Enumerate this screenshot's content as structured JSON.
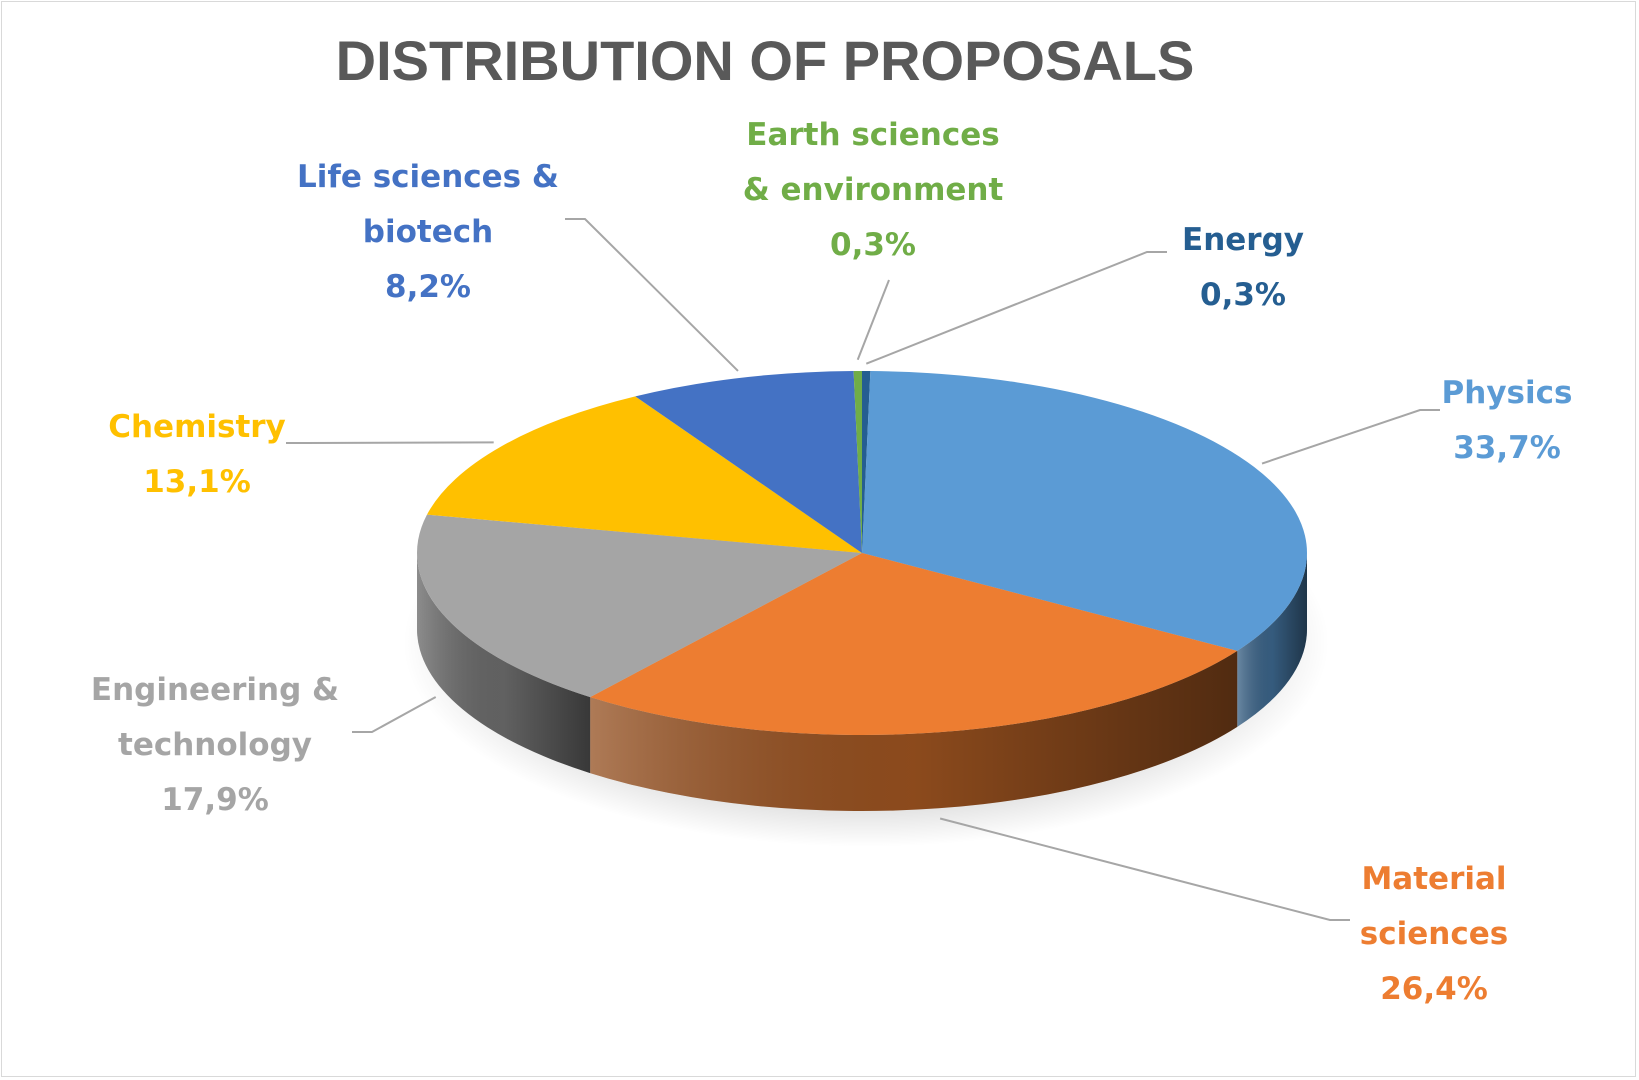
{
  "chart_data": {
    "type": "pie",
    "title": "DISTRIBUTION OF PROPOSALS",
    "slices": [
      {
        "name": "Energy",
        "value": 0.3,
        "label": "0,3%",
        "name_lines": [
          "Energy"
        ],
        "color": "#255E91"
      },
      {
        "name": "Physics",
        "value": 33.7,
        "label": "33,7%",
        "name_lines": [
          "Physics"
        ],
        "color": "#5B9BD5"
      },
      {
        "name": "Material sciences",
        "value": 26.4,
        "label": "26,4%",
        "name_lines": [
          "Material",
          "sciences"
        ],
        "color": "#ED7D31"
      },
      {
        "name": "Engineering & technology",
        "value": 17.9,
        "label": "17,9%",
        "name_lines": [
          "Engineering &",
          "technology"
        ],
        "color": "#A5A5A5"
      },
      {
        "name": "Chemistry",
        "value": 13.1,
        "label": "13,1%",
        "name_lines": [
          "Chemistry"
        ],
        "color": "#FFC000"
      },
      {
        "name": "Life sciences & biotech",
        "value": 8.2,
        "label": "8,2%",
        "name_lines": [
          "Life sciences &",
          "biotech"
        ],
        "color": "#4472C4"
      },
      {
        "name": "Earth sciences & environment",
        "value": 0.3,
        "label": "0,3%",
        "name_lines": [
          "Earth sciences",
          "& environment"
        ],
        "color": "#70AD47"
      }
    ],
    "legend": "none",
    "data_labels": "outside-with-leader-lines",
    "style": "3d-pie"
  }
}
